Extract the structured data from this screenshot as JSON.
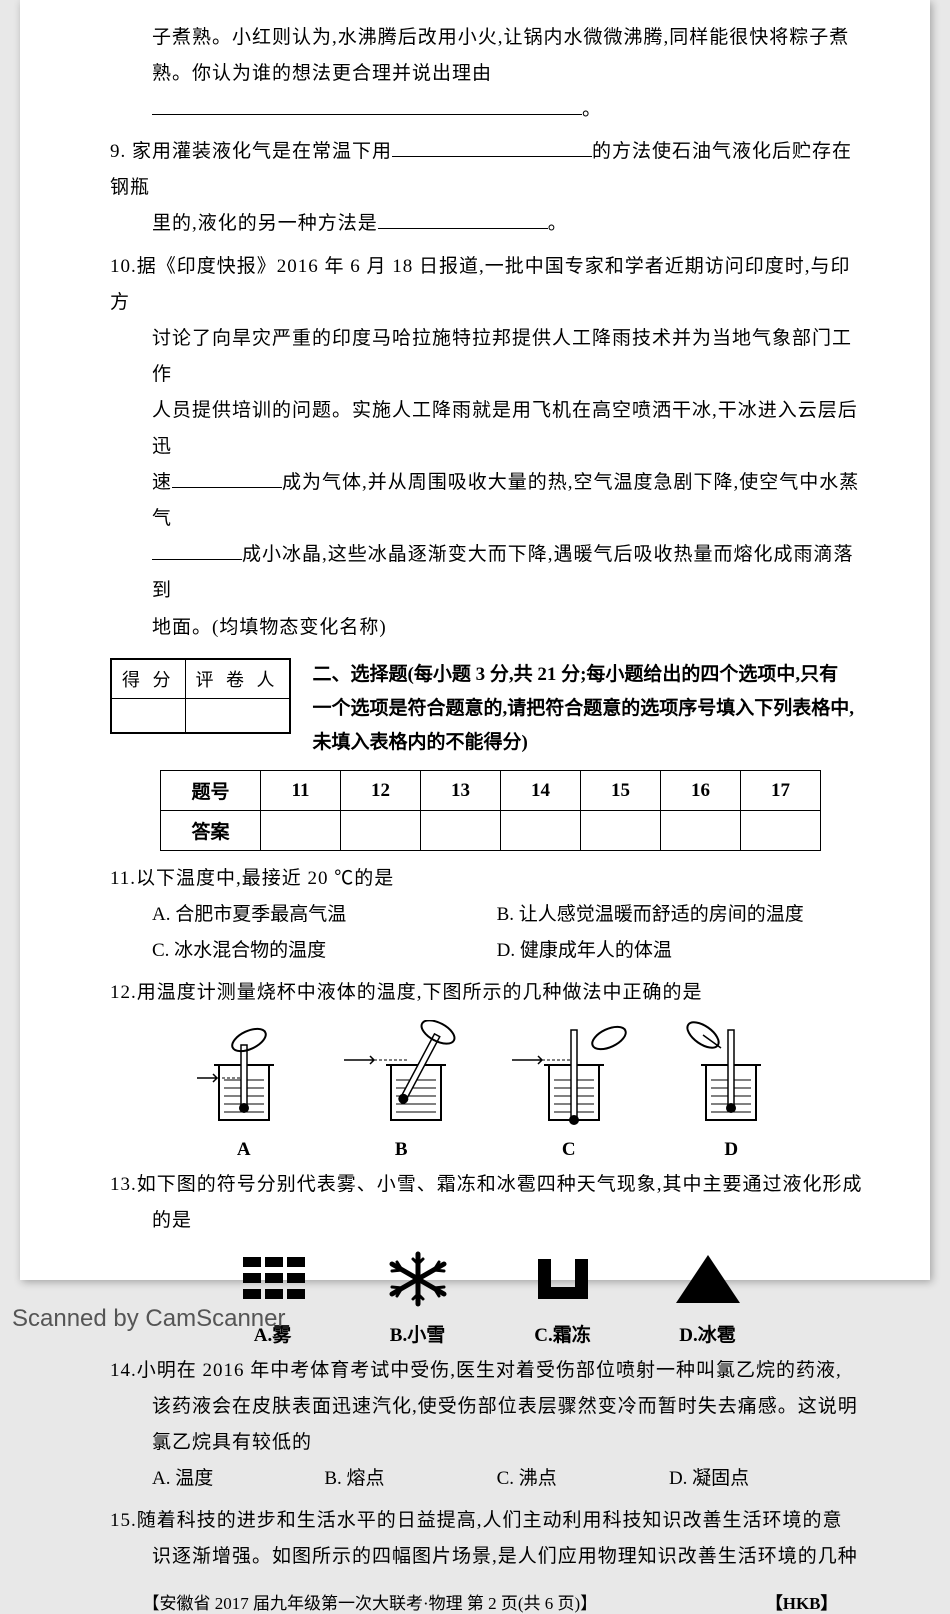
{
  "q8_tail": {
    "l1": "子煮熟。小红则认为,水沸腾后改用小火,让锅内水微微沸腾,同样能很快将粽子煮",
    "l2_a": "熟。你认为谁的想法更合理并说出理由",
    "l2_blank_w": 430
  },
  "q9": {
    "num": "9.",
    "a": "家用灌装液化气是在常温下用",
    "blank1_w": 200,
    "b": "的方法使石油气液化后贮存在钢瓶",
    "c": "里的,液化的另一种方法是",
    "blank2_w": 170,
    "d": "。"
  },
  "q10": {
    "num": "10.",
    "l1": "据《印度快报》2016 年 6 月 18 日报道,一批中国专家和学者近期访问印度时,与印方",
    "l2": "讨论了向旱灾严重的印度马哈拉施特拉邦提供人工降雨技术并为当地气象部门工作",
    "l3": "人员提供培训的问题。实施人工降雨就是用飞机在高空喷洒干冰,干冰进入云层后迅",
    "l4a": "速",
    "blank1_w": 110,
    "l4b": "成为气体,并从周围吸收大量的热,空气温度急剧下降,使空气中水蒸气",
    "blank2_w": 90,
    "l5": "成小冰晶,这些冰晶逐渐变大而下降,遇暖气后吸收热量而熔化成雨滴落到",
    "l6": "地面。(均填物态变化名称)"
  },
  "score": {
    "a": "得 分",
    "b": "评 卷 人"
  },
  "section2": {
    "title": "二、选择题(每小题 3 分,共 21 分;每小题给出的四个选项中,只有一个选项是符合题意的,请把符合题意的选项序号填入下列表格中,未填入表格内的不能得分)",
    "dot": "下列表"
  },
  "tbl": {
    "h": "题号",
    "r": "答案",
    "n": [
      "11",
      "12",
      "13",
      "14",
      "15",
      "16",
      "17"
    ]
  },
  "q11": {
    "num": "11.",
    "stem": "以下温度中,最接近 20 ℃的是",
    "A": "A. 合肥市夏季最高气温",
    "B": "B. 让人感觉温暖而舒适的房间的温度",
    "C": "C. 冰水混合物的温度",
    "D": "D. 健康成年人的体温"
  },
  "q12": {
    "num": "12.",
    "stem": "用温度计测量烧杯中液体的温度,下图所示的几种做法中正确的是",
    "labels": [
      "A",
      "B",
      "C",
      "D"
    ]
  },
  "q13": {
    "num": "13.",
    "stem": "如下图的符号分别代表雾、小雪、霜冻和冰雹四种天气现象,其中主要通过液化形成",
    "stem2": "的是",
    "A": "A.雾",
    "B": "B.小雪",
    "C": "C.霜冻",
    "D": "D.冰雹"
  },
  "q14": {
    "num": "14.",
    "l1": "小明在 2016 年中考体育考试中受伤,医生对着受伤部位喷射一种叫氯乙烷的药液,",
    "l2": "该药液会在皮肤表面迅速汽化,使受伤部位表层骤然变冷而暂时失去痛感。这说明",
    "l3": "氯乙烷具有较低的",
    "A": "A. 温度",
    "B": "B. 熔点",
    "C": "C. 沸点",
    "D": "D. 凝固点"
  },
  "q15": {
    "num": "15.",
    "l1": "随着科技的进步和生活水平的日益提高,人们主动利用科技知识改善生活环境的意",
    "l2": "识逐渐增强。如图所示的四幅图片场景,是人们应用物理知识改善生活环境的几种"
  },
  "footer": {
    "a": "【安徽省 2017 届九年级第一次大联考·物理  第 2 页(共 6 页)】",
    "b": "【HKB】"
  },
  "scan": "Scanned by CamScanner"
}
